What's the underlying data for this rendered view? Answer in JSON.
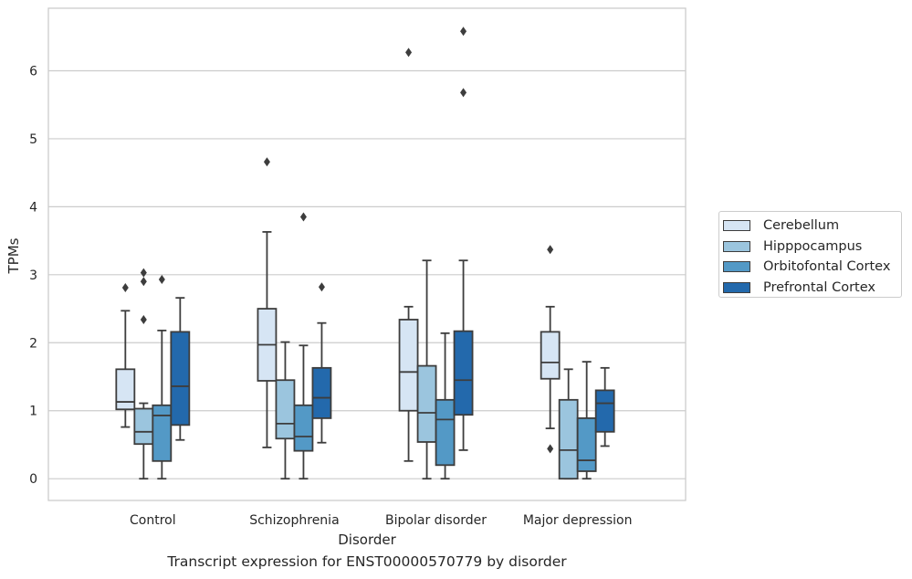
{
  "chart_data": {
    "type": "box",
    "xlabel": "Disorder",
    "ylabel": "TPMs",
    "caption": "Transcript expression for ENST00000570779 by disorder",
    "ylim": [
      -0.32,
      6.92
    ],
    "yticks": [
      0,
      1,
      2,
      3,
      4,
      5,
      6
    ],
    "grid": "horizontal",
    "legend_position": "right",
    "categories": [
      "Control",
      "Schizophrenia",
      "Bipolar disorder",
      "Major depression"
    ],
    "series": [
      {
        "name": "Cerebellum",
        "color": "#d6e5f4",
        "boxes": [
          {
            "whisker_low": 0.76,
            "q1": 1.02,
            "median": 1.13,
            "q3": 1.61,
            "whisker_high": 2.47,
            "outliers": [
              2.81
            ]
          },
          {
            "whisker_low": 0.46,
            "q1": 1.44,
            "median": 1.97,
            "q3": 2.5,
            "whisker_high": 3.63,
            "outliers": [
              4.66
            ]
          },
          {
            "whisker_low": 0.26,
            "q1": 1.0,
            "median": 1.57,
            "q3": 2.34,
            "whisker_high": 2.53,
            "outliers": [
              6.27
            ]
          },
          {
            "whisker_low": 0.74,
            "q1": 1.47,
            "median": 1.71,
            "q3": 2.16,
            "whisker_high": 2.53,
            "outliers": [
              3.37,
              0.44
            ]
          }
        ]
      },
      {
        "name": "Hipppocampus",
        "color": "#9bc5de",
        "boxes": [
          {
            "whisker_low": 0.0,
            "q1": 0.51,
            "median": 0.69,
            "q3": 1.03,
            "whisker_high": 1.11,
            "outliers": [
              3.03,
              2.9,
              2.34
            ]
          },
          {
            "whisker_low": 0.0,
            "q1": 0.59,
            "median": 0.81,
            "q3": 1.45,
            "whisker_high": 2.01,
            "outliers": []
          },
          {
            "whisker_low": 0.0,
            "q1": 0.54,
            "median": 0.97,
            "q3": 1.66,
            "whisker_high": 3.21,
            "outliers": []
          },
          {
            "whisker_low": 0.0,
            "q1": 0.0,
            "median": 0.42,
            "q3": 1.16,
            "whisker_high": 1.61,
            "outliers": []
          }
        ]
      },
      {
        "name": "Orbitofontal Cortex",
        "color": "#5399c6",
        "boxes": [
          {
            "whisker_low": 0.0,
            "q1": 0.26,
            "median": 0.93,
            "q3": 1.08,
            "whisker_high": 2.18,
            "outliers": [
              2.93
            ]
          },
          {
            "whisker_low": 0.0,
            "q1": 0.41,
            "median": 0.62,
            "q3": 1.08,
            "whisker_high": 1.96,
            "outliers": [
              3.85
            ]
          },
          {
            "whisker_low": 0.0,
            "q1": 0.2,
            "median": 0.87,
            "q3": 1.16,
            "whisker_high": 2.14,
            "outliers": []
          },
          {
            "whisker_low": 0.0,
            "q1": 0.11,
            "median": 0.27,
            "q3": 0.89,
            "whisker_high": 1.72,
            "outliers": []
          }
        ]
      },
      {
        "name": "Prefrontal Cortex",
        "color": "#2369ac",
        "boxes": [
          {
            "whisker_low": 0.57,
            "q1": 0.79,
            "median": 1.36,
            "q3": 2.16,
            "whisker_high": 2.66,
            "outliers": []
          },
          {
            "whisker_low": 0.53,
            "q1": 0.89,
            "median": 1.19,
            "q3": 1.63,
            "whisker_high": 2.29,
            "outliers": [
              2.82
            ]
          },
          {
            "whisker_low": 0.42,
            "q1": 0.94,
            "median": 1.45,
            "q3": 2.17,
            "whisker_high": 3.21,
            "outliers": [
              6.58,
              5.68
            ]
          },
          {
            "whisker_low": 0.48,
            "q1": 0.69,
            "median": 1.11,
            "q3": 1.3,
            "whisker_high": 1.63,
            "outliers": []
          }
        ]
      }
    ]
  }
}
